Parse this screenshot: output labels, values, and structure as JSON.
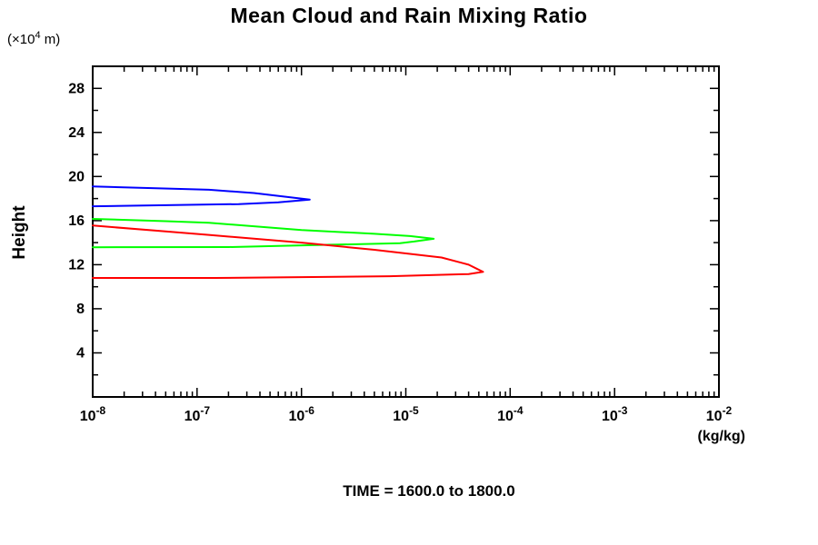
{
  "chart": {
    "title": "Mean Cloud and Rain Mixing Ratio",
    "caption": "TIME = 1600.0 to 1800.0",
    "y_axis": {
      "label": "Height",
      "unit_prefix": "(×10",
      "unit_exponent": "4",
      "unit_suffix": " m)"
    },
    "x_axis": {
      "unit": "(kg/kg)"
    }
  },
  "chart_data": {
    "type": "line",
    "title": "Mean Cloud and Rain Mixing Ratio",
    "subtitle": "TIME = 1600.0 to 1800.0",
    "xlabel": "(kg/kg)",
    "ylabel": "Height (×10^4 m)",
    "x_scale": "log",
    "xlim": [
      1e-08,
      0.01
    ],
    "ylim": [
      0,
      30
    ],
    "grid": false,
    "legend": "none",
    "frame": "box",
    "x_tick_base": "10",
    "x_ticks_exponents": [
      -8,
      -7,
      -6,
      -5,
      -4,
      -3,
      -2
    ],
    "y_tick_step": 2,
    "y_label_step": 4,
    "y_tick_labels": [
      4,
      8,
      12,
      16,
      20,
      24,
      28
    ],
    "series": [
      {
        "name": "blue-profile",
        "color": "#0000ff",
        "points": [
          [
            1e-08,
            19.1
          ],
          [
            1.3e-07,
            18.8
          ],
          [
            3.5e-07,
            18.5
          ],
          [
            1.2e-06,
            17.9
          ],
          [
            6e-07,
            17.65
          ],
          [
            2.5e-07,
            17.5
          ],
          [
            1e-08,
            17.3
          ]
        ]
      },
      {
        "name": "green-profile",
        "color": "#00ff00",
        "points": [
          [
            1e-08,
            16.15
          ],
          [
            5e-08,
            15.95
          ],
          [
            1.3e-07,
            15.8
          ],
          [
            1e-06,
            15.15
          ],
          [
            5e-06,
            14.8
          ],
          [
            1.1e-05,
            14.6
          ],
          [
            1.85e-05,
            14.35
          ],
          [
            1.2e-05,
            14.1
          ],
          [
            8.8e-06,
            13.95
          ],
          [
            6e-07,
            13.7
          ],
          [
            2e-07,
            13.6
          ],
          [
            1e-08,
            13.58
          ]
        ]
      },
      {
        "name": "red-profile",
        "color": "#ff0000",
        "points": [
          [
            1e-08,
            15.55
          ],
          [
            1.3e-07,
            14.7
          ],
          [
            1e-06,
            14.0
          ],
          [
            5e-06,
            13.35
          ],
          [
            2.2e-05,
            12.65
          ],
          [
            4e-05,
            12.0
          ],
          [
            5.5e-05,
            11.35
          ],
          [
            4e-05,
            11.15
          ],
          [
            7e-06,
            10.95
          ],
          [
            1.5e-07,
            10.8
          ],
          [
            1e-08,
            10.8
          ]
        ]
      }
    ]
  }
}
